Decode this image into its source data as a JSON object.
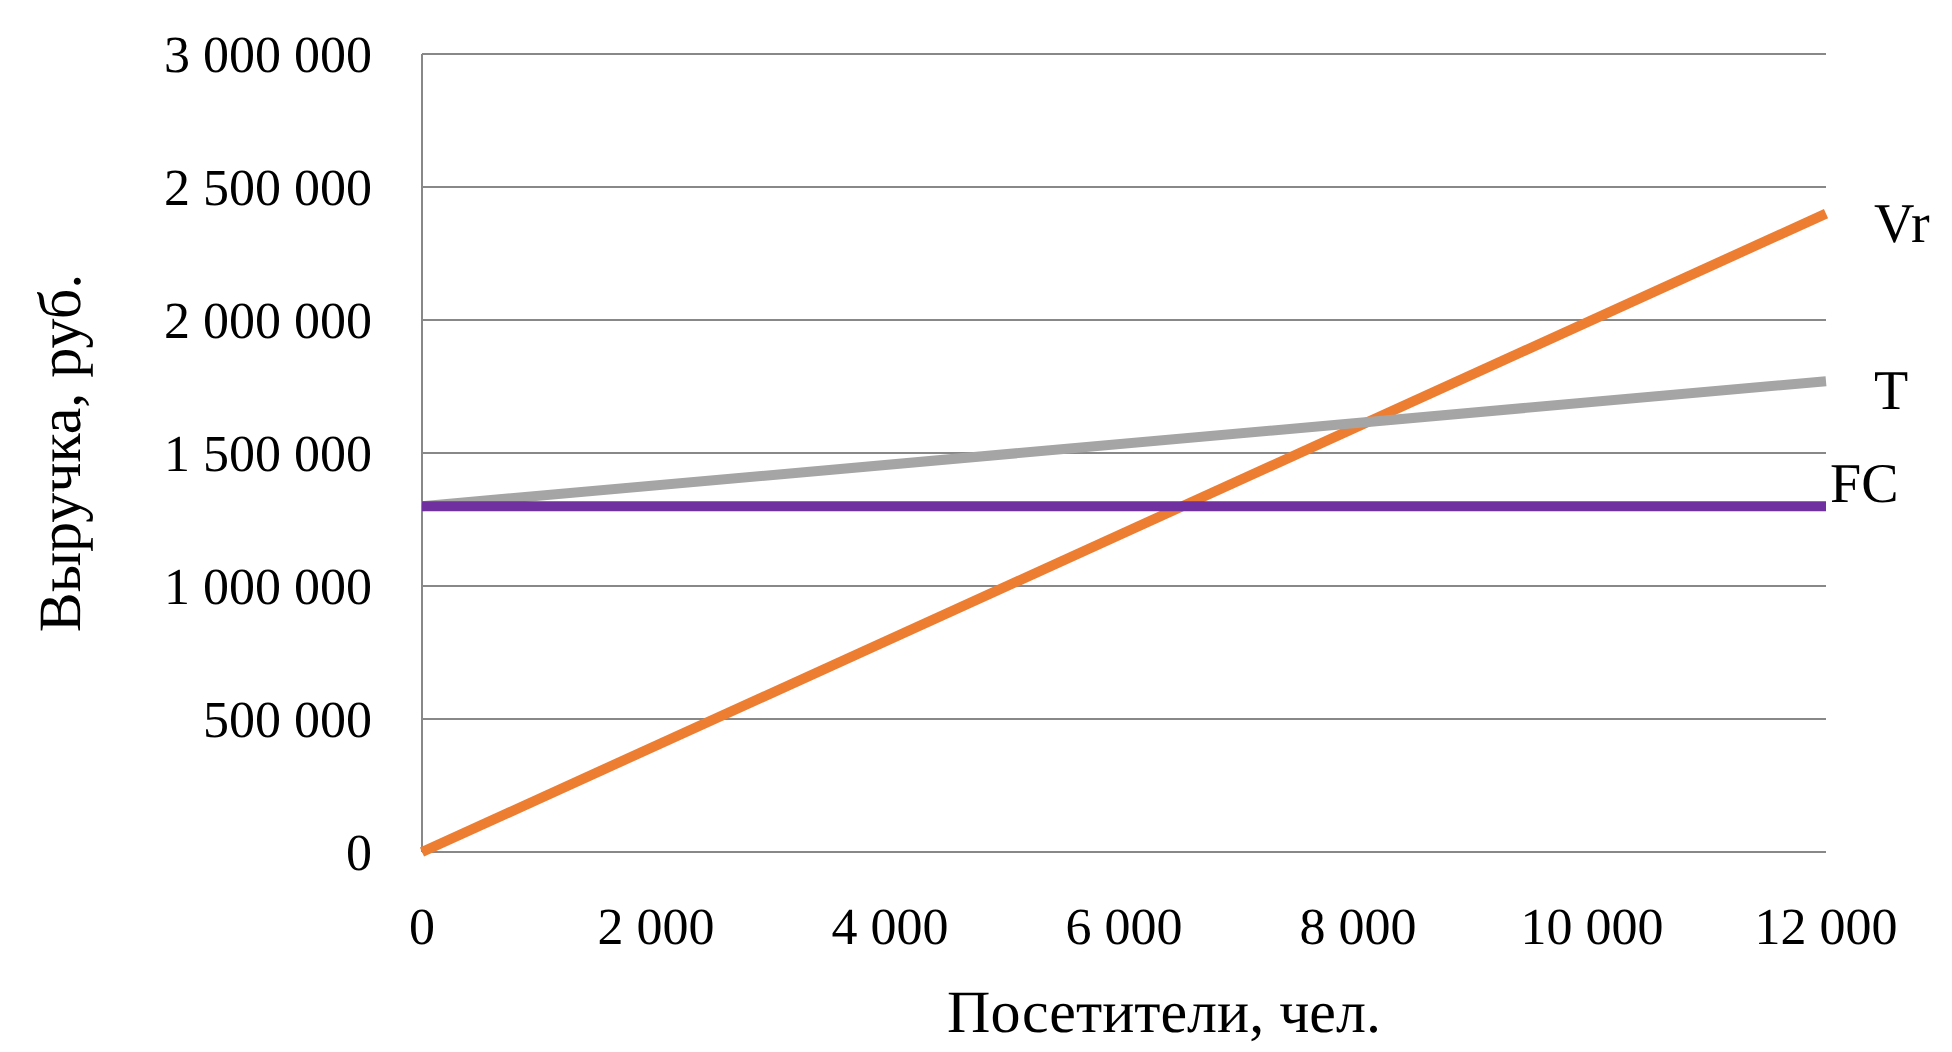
{
  "chart_data": {
    "type": "line",
    "xlabel": "Посетители, чел.",
    "ylabel": "Выручка, руб.",
    "x": [
      0,
      12000
    ],
    "series": [
      {
        "name": "Vr",
        "color": "#ed7d31",
        "values": [
          0,
          2400000
        ]
      },
      {
        "name": "T",
        "color": "#a5a5a5",
        "values": [
          1300000,
          1770000
        ]
      },
      {
        "name": "FC",
        "color": "#7030a0",
        "values": [
          1300000,
          1300000
        ]
      }
    ],
    "xlim": [
      0,
      12000
    ],
    "xticks": [
      0,
      {
        "value": 2000,
        "label": "2 000"
      },
      {
        "value": 4000,
        "label": "4 000"
      },
      {
        "value": 6000,
        "label": "6 000"
      },
      {
        "value": 8000,
        "label": "8 000"
      },
      {
        "value": 10000,
        "label": "10 000"
      },
      {
        "value": 12000,
        "label": "12 000"
      }
    ],
    "ylim": [
      0,
      3000000
    ],
    "yticks": [
      0,
      {
        "value": 500000,
        "label": "500 000"
      },
      {
        "value": 1000000,
        "label": "1 000 000"
      },
      {
        "value": 1500000,
        "label": "1 500 000"
      },
      {
        "value": 2000000,
        "label": "2 000 000"
      },
      {
        "value": 2500000,
        "label": "2 500 000"
      },
      {
        "value": 3000000,
        "label": "3 000 000"
      }
    ],
    "grid": "y",
    "marker": "none",
    "line_style": "solid"
  }
}
